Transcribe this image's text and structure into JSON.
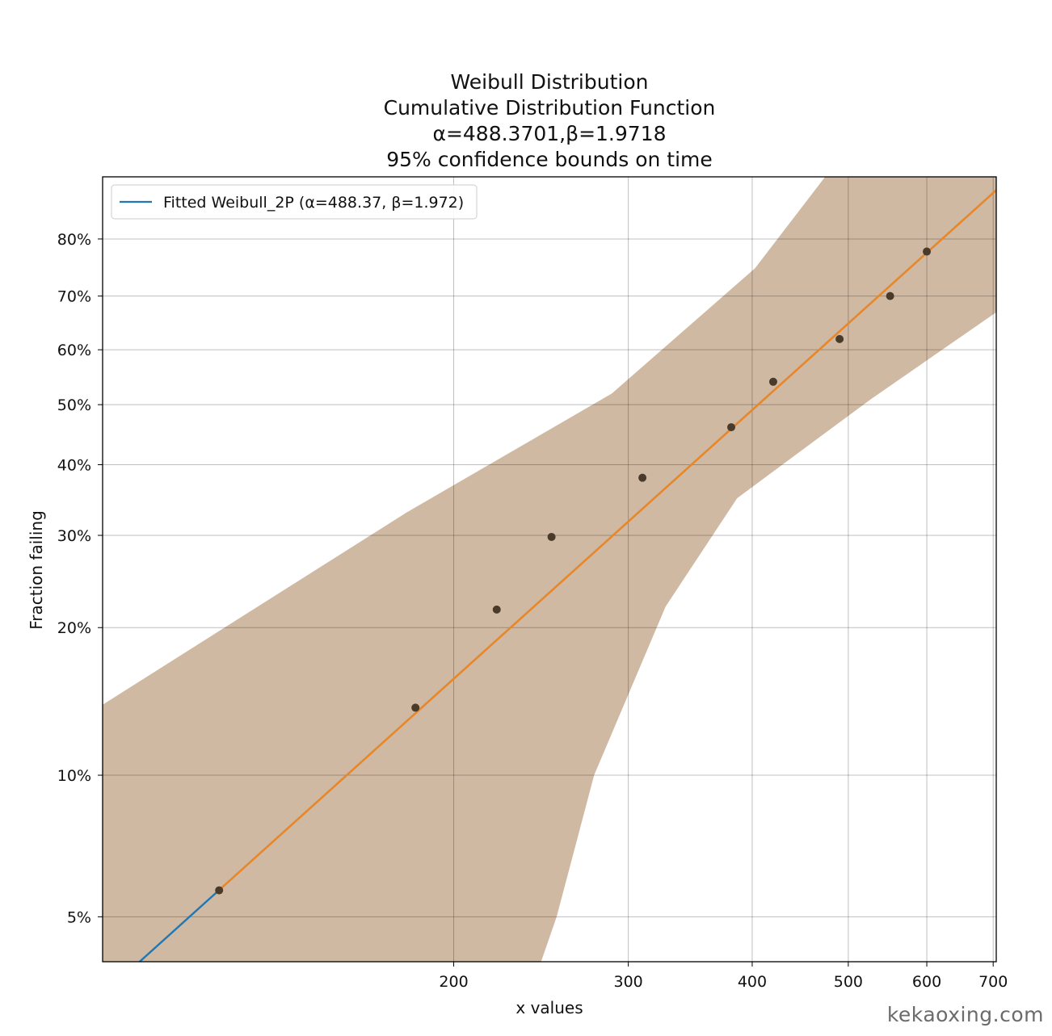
{
  "chart_data": {
    "type": "scatter",
    "title_lines": [
      "Weibull Distribution",
      "Cumulative Distribution Function",
      "α=488.3701,β=1.9718",
      "95% confidence bounds on time"
    ],
    "xlabel": "x values",
    "ylabel": "Fraction failing",
    "x_scale": "log",
    "y_scale": "weibull",
    "xlim": [
      88.5,
      705
    ],
    "ylim": [
      0.04,
      0.89
    ],
    "x_ticks": [
      {
        "value": 200,
        "label": "200"
      },
      {
        "value": 300,
        "label": "300"
      },
      {
        "value": 400,
        "label": "400"
      },
      {
        "value": 500,
        "label": "500"
      },
      {
        "value": 600,
        "label": "600"
      },
      {
        "value": 700,
        "label": "700"
      }
    ],
    "y_ticks": [
      {
        "value": 0.05,
        "label": "5%"
      },
      {
        "value": 0.1,
        "label": "10%"
      },
      {
        "value": 0.2,
        "label": "20%"
      },
      {
        "value": 0.3,
        "label": "30%"
      },
      {
        "value": 0.4,
        "label": "40%"
      },
      {
        "value": 0.5,
        "label": "50%"
      },
      {
        "value": 0.6,
        "label": "60%"
      },
      {
        "value": 0.7,
        "label": "70%"
      },
      {
        "value": 0.8,
        "label": "80%"
      }
    ],
    "grid": true,
    "legend_position": "top-left",
    "legend": [
      {
        "label": "Fitted Weibull_2P (α=488.37, β=1.972)",
        "color": "#1f77b4"
      }
    ],
    "fit": {
      "alpha": 488.3701,
      "beta": 1.9718
    },
    "fit_line": {
      "blue_x_range": [
        88.5,
        116
      ],
      "orange_x_range": [
        116,
        705
      ],
      "blue_color": "#1f77b4",
      "orange_color": "#e8872a"
    },
    "confidence_band": {
      "color": "#cfb9a2",
      "lower_x_at_5pct": 254,
      "upper_x_at_14pct": 88.5
    },
    "points": [
      {
        "x": 116,
        "y": 0.057
      },
      {
        "x": 183,
        "y": 0.138
      },
      {
        "x": 221,
        "y": 0.217
      },
      {
        "x": 251,
        "y": 0.298
      },
      {
        "x": 310,
        "y": 0.38
      },
      {
        "x": 381,
        "y": 0.461
      },
      {
        "x": 420,
        "y": 0.541
      },
      {
        "x": 490,
        "y": 0.62
      },
      {
        "x": 551,
        "y": 0.7
      },
      {
        "x": 600,
        "y": 0.779
      }
    ],
    "point_color": "#4a3a2a"
  },
  "watermark": "kekaoxing.com"
}
